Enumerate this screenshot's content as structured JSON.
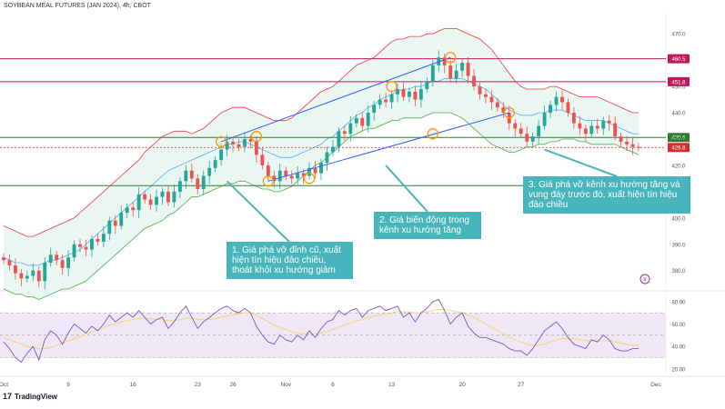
{
  "chart_data": {
    "type": "candlestick",
    "title": "SOYBEAN MEAL FUTURES (JAN 2024), 4h, CBOT",
    "x_tick_labels": [
      "Oct",
      "9",
      "16",
      "23",
      "26",
      "Nov",
      "6",
      "13",
      "20",
      "27",
      "Dec"
    ],
    "price_axis": {
      "ylim": [
        373,
        478
      ],
      "ticks": [
        470.0,
        450.0,
        440.0,
        430.0,
        420.0,
        410.0,
        400.0,
        390.0,
        380.0
      ],
      "tick_labels": [
        "470.0",
        "450.0",
        "440.0",
        "430.0",
        "420.0",
        "410.0",
        "400.0",
        "390.0",
        "380.0"
      ]
    },
    "horizontal_levels": [
      {
        "value": 460.5,
        "label": "460.5",
        "color": "#c2185b"
      },
      {
        "value": 451.8,
        "label": "451.8",
        "color": "#c2185b"
      },
      {
        "value": 430.6,
        "label": "430.6",
        "color": "#2e7d32"
      },
      {
        "value": 426.8,
        "label": "426.8",
        "color": "#d32f2f",
        "style": "dotted"
      },
      {
        "value": 412.3,
        "label": "412.3",
        "color": "#2e7d32"
      }
    ],
    "close_series": [
      384,
      382,
      379,
      377,
      378,
      380,
      376,
      383,
      386,
      384,
      381,
      385,
      390,
      389,
      388,
      392,
      391,
      394,
      399,
      397,
      402,
      404,
      403,
      409,
      407,
      405,
      408,
      410,
      406,
      410,
      414,
      418,
      415,
      411,
      416,
      419,
      422,
      426,
      429,
      428,
      427,
      430,
      429,
      424,
      420,
      416,
      414,
      418,
      416,
      415,
      417,
      416,
      419,
      417,
      421,
      425,
      427,
      433,
      432,
      436,
      438,
      435,
      440,
      443,
      445,
      444,
      447,
      449,
      446,
      448,
      445,
      449,
      452,
      458,
      461,
      458,
      453,
      456,
      459,
      454,
      450,
      447,
      446,
      444,
      442,
      440,
      436,
      434,
      432,
      429,
      431,
      435,
      440,
      443,
      446,
      444,
      440,
      436,
      434,
      432,
      435,
      434,
      437,
      436,
      431,
      429,
      428,
      427,
      426.8
    ],
    "series": [
      {
        "name": "Bollinger upper",
        "values": [
          397,
          396,
          395,
          394,
          393,
          393,
          394,
          395,
          396,
          397,
          398,
          399,
          400,
          402,
          404,
          406,
          408,
          410,
          412,
          414,
          416,
          418,
          420,
          422,
          425,
          427,
          429,
          431,
          432,
          433,
          433,
          433,
          432,
          433,
          434,
          436,
          438,
          440,
          441,
          442,
          442,
          442,
          441,
          440,
          439,
          438,
          437,
          437,
          437,
          438,
          440,
          442,
          444,
          446,
          448,
          449,
          450,
          452,
          454,
          456,
          458,
          459,
          460,
          461,
          463,
          465,
          467,
          468,
          468,
          469,
          469,
          469,
          470,
          470,
          471,
          472,
          472,
          472,
          471,
          470,
          469,
          468,
          466,
          464,
          461,
          458,
          455,
          452,
          450,
          449,
          449,
          449,
          449,
          450,
          450,
          449,
          448,
          447,
          446,
          446,
          446,
          446,
          445,
          444,
          443,
          442,
          441,
          440,
          440
        ]
      },
      {
        "name": "Bollinger basis",
        "values": [
          385,
          384,
          383,
          383,
          382,
          382,
          382,
          383,
          384,
          384,
          385,
          386,
          387,
          388,
          390,
          392,
          394,
          396,
          398,
          400,
          402,
          404,
          406,
          408,
          410,
          412,
          414,
          416,
          418,
          419,
          420,
          421,
          422,
          423,
          424,
          425,
          426,
          427,
          428,
          428,
          429,
          429,
          428,
          427,
          426,
          425,
          424,
          423,
          423,
          423,
          424,
          425,
          426,
          427,
          428,
          430,
          431,
          433,
          435,
          437,
          439,
          440,
          442,
          443,
          445,
          446,
          447,
          448,
          449,
          449,
          450,
          450,
          451,
          452,
          452,
          453,
          453,
          453,
          453,
          452,
          451,
          450,
          449,
          447,
          445,
          443,
          441,
          440,
          439,
          439,
          439,
          440,
          440,
          441,
          441,
          441,
          440,
          439,
          438,
          437,
          437,
          437,
          437,
          436,
          435,
          434,
          433,
          432,
          432
        ]
      },
      {
        "name": "Bollinger lower",
        "values": [
          373,
          372,
          371,
          371,
          370,
          370,
          369,
          370,
          371,
          372,
          373,
          373,
          374,
          375,
          376,
          378,
          380,
          382,
          384,
          386,
          388,
          390,
          392,
          394,
          396,
          397,
          398,
          399,
          401,
          402,
          404,
          406,
          408,
          408,
          409,
          410,
          411,
          412,
          413,
          413,
          414,
          414,
          413,
          412,
          411,
          411,
          410,
          410,
          411,
          412,
          414,
          416,
          418,
          420,
          421,
          423,
          425,
          427,
          429,
          431,
          432,
          433,
          434,
          434,
          435,
          436,
          437,
          437,
          438,
          438,
          438,
          438,
          439,
          440,
          440,
          440,
          440,
          439,
          438,
          436,
          434,
          432,
          430,
          428,
          427,
          426,
          425,
          425,
          426,
          427,
          427,
          428,
          428,
          429,
          429,
          430,
          430,
          430,
          429,
          429,
          428,
          428,
          428,
          428,
          428,
          427,
          426,
          425,
          424
        ]
      },
      {
        "name": "RSI",
        "values": [
          44,
          38,
          30,
          26,
          34,
          40,
          28,
          46,
          54,
          50,
          42,
          52,
          60,
          56,
          52,
          58,
          54,
          60,
          68,
          62,
          66,
          70,
          66,
          72,
          66,
          60,
          64,
          66,
          56,
          62,
          70,
          76,
          66,
          56,
          62,
          66,
          70,
          74,
          76,
          72,
          70,
          74,
          70,
          58,
          50,
          44,
          42,
          50,
          46,
          44,
          50,
          46,
          54,
          48,
          56,
          62,
          64,
          72,
          68,
          72,
          74,
          66,
          72,
          74,
          76,
          72,
          74,
          76,
          66,
          70,
          62,
          70,
          74,
          80,
          82,
          72,
          60,
          66,
          70,
          58,
          52,
          48,
          48,
          46,
          44,
          42,
          38,
          36,
          36,
          32,
          38,
          46,
          54,
          58,
          62,
          56,
          48,
          42,
          40,
          38,
          46,
          44,
          50,
          46,
          38,
          36,
          36,
          38,
          38
        ]
      },
      {
        "name": "RSI-based MA",
        "values": [
          48,
          46,
          44,
          42,
          40,
          39,
          38,
          38,
          39,
          41,
          43,
          45,
          47,
          49,
          51,
          53,
          55,
          57,
          59,
          60,
          62,
          63,
          64,
          65,
          65,
          65,
          64,
          64,
          63,
          63,
          64,
          65,
          65,
          64,
          64,
          64,
          65,
          66,
          67,
          68,
          69,
          70,
          70,
          68,
          65,
          62,
          59,
          57,
          55,
          53,
          52,
          51,
          51,
          51,
          52,
          53,
          55,
          57,
          59,
          61,
          63,
          64,
          66,
          67,
          68,
          69,
          70,
          71,
          71,
          71,
          70,
          70,
          71,
          72,
          73,
          73,
          72,
          71,
          70,
          68,
          66,
          63,
          60,
          57,
          54,
          51,
          48,
          46,
          44,
          42,
          41,
          41,
          42,
          44,
          46,
          47,
          47,
          47,
          46,
          45,
          45,
          45,
          45,
          45,
          44,
          43,
          42,
          41,
          41
        ]
      }
    ],
    "rsi_axis": {
      "ylim": [
        15,
        88
      ],
      "ticks": [
        80.0,
        60.0,
        40.0,
        20.0
      ],
      "tick_labels": [
        "80.00",
        "60.00",
        "40.00",
        "20.00"
      ],
      "bands": [
        70,
        50,
        30
      ]
    },
    "colors": {
      "up": "#26a69a",
      "down": "#ef5350",
      "band": "#f23645",
      "basis": "#2196f3",
      "lower": "#4caf50",
      "fill": "#e5f4ee",
      "channel": "#2962ff",
      "circle": "#ff9800",
      "rsi_bg": "#ede7f6",
      "rsi": "#7e57c2",
      "rsi_ma": "#f9d56e",
      "callout": "#47b5bb"
    },
    "annotations": [
      "1. Giá phá vỡ đỉnh cũ, xuất hiện tín hiệu đảo chiều, thoát khỏi xu hướng giảm",
      "2. Giá biến động trong kênh xu hướng tăng",
      "3. Giá phá vỡ kênh xu hướng tăng và vung đáy trước đó, xuất hiện tín hiệu đảo chiều"
    ],
    "replay_badge": "⑤"
  },
  "branding": {
    "logo_mark": "17",
    "logo_text": "TradingView"
  }
}
